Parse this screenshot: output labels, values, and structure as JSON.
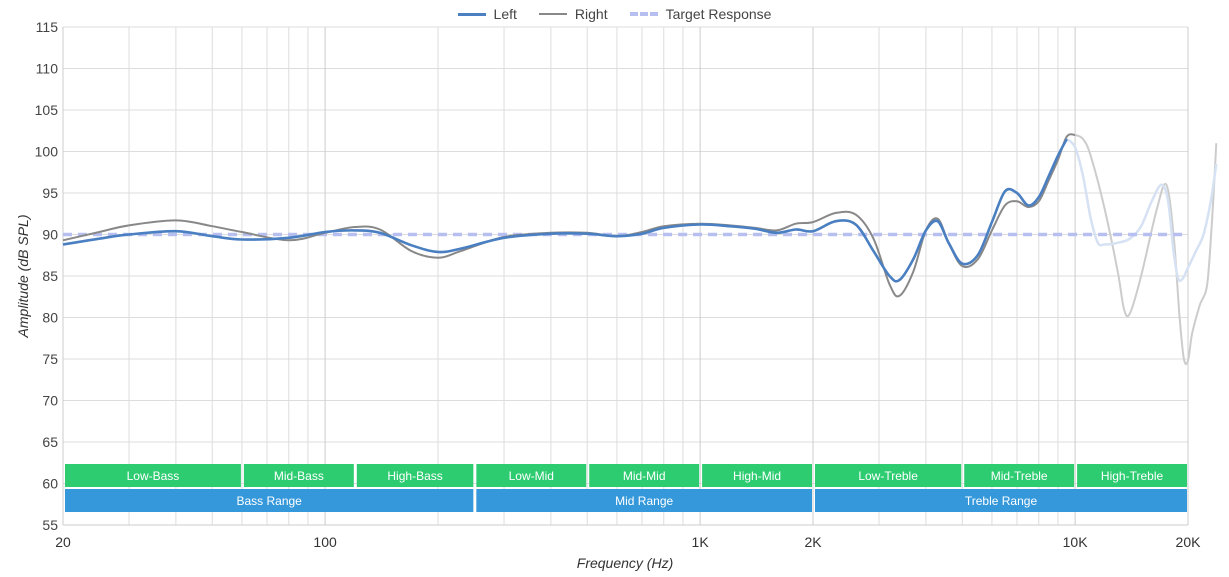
{
  "chart_data": {
    "type": "line",
    "title": "",
    "xlabel": "Frequency (Hz)",
    "ylabel": "Amplitude (dB SPL)",
    "xscale": "log",
    "xlim": [
      20,
      20000
    ],
    "ylim": [
      55,
      115
    ],
    "grid": true,
    "legend_position": "top-center",
    "y_ticks": [
      55,
      60,
      65,
      70,
      75,
      80,
      85,
      90,
      95,
      100,
      105,
      110,
      115
    ],
    "x_ticks": [
      {
        "value": 20,
        "label": "20"
      },
      {
        "value": 100,
        "label": "100"
      },
      {
        "value": 1000,
        "label": "1K"
      },
      {
        "value": 2000,
        "label": "2K"
      },
      {
        "value": 10000,
        "label": "10K"
      },
      {
        "value": 20000,
        "label": "20K"
      }
    ],
    "x_minor_grid": [
      30,
      40,
      50,
      60,
      70,
      80,
      90,
      200,
      300,
      400,
      500,
      600,
      700,
      800,
      900,
      3000,
      4000,
      5000,
      6000,
      7000,
      8000,
      9000
    ],
    "series": [
      {
        "name": "Left",
        "color": "#4a7fc1",
        "style": "solid",
        "points": [
          [
            20,
            88.8
          ],
          [
            25,
            89.5
          ],
          [
            30,
            90.0
          ],
          [
            40,
            90.4
          ],
          [
            50,
            89.8
          ],
          [
            60,
            89.4
          ],
          [
            80,
            89.6
          ],
          [
            100,
            90.3
          ],
          [
            120,
            90.5
          ],
          [
            140,
            90.2
          ],
          [
            170,
            88.7
          ],
          [
            200,
            87.9
          ],
          [
            230,
            88.3
          ],
          [
            300,
            89.6
          ],
          [
            400,
            90.1
          ],
          [
            500,
            90.1
          ],
          [
            600,
            89.8
          ],
          [
            700,
            90.1
          ],
          [
            800,
            90.8
          ],
          [
            1000,
            91.2
          ],
          [
            1200,
            91.0
          ],
          [
            1400,
            90.7
          ],
          [
            1600,
            90.2
          ],
          [
            1800,
            90.6
          ],
          [
            2000,
            90.4
          ],
          [
            2300,
            91.6
          ],
          [
            2600,
            91.2
          ],
          [
            2900,
            88.0
          ],
          [
            3200,
            85.0
          ],
          [
            3400,
            84.5
          ],
          [
            3700,
            87.0
          ],
          [
            4000,
            90.5
          ],
          [
            4300,
            91.6
          ],
          [
            4600,
            89.0
          ],
          [
            5000,
            86.5
          ],
          [
            5500,
            87.5
          ],
          [
            6000,
            91.5
          ],
          [
            6500,
            95.2
          ],
          [
            7000,
            95.0
          ],
          [
            7500,
            93.5
          ],
          [
            8000,
            94.5
          ],
          [
            8500,
            97.0
          ],
          [
            9000,
            99.5
          ],
          [
            9500,
            101.5
          ]
        ],
        "faded_points": [],
        "faded_color": "#d6e2f3"
      },
      {
        "name": "Right",
        "color": "#888888",
        "style": "solid",
        "points": [
          [
            20,
            89.3
          ],
          [
            25,
            90.3
          ],
          [
            30,
            91.1
          ],
          [
            40,
            91.7
          ],
          [
            50,
            91.0
          ],
          [
            60,
            90.3
          ],
          [
            80,
            89.3
          ],
          [
            100,
            90.2
          ],
          [
            120,
            90.9
          ],
          [
            140,
            90.6
          ],
          [
            170,
            88.0
          ],
          [
            200,
            87.2
          ],
          [
            230,
            88.0
          ],
          [
            300,
            89.7
          ],
          [
            400,
            90.2
          ],
          [
            500,
            90.2
          ],
          [
            600,
            89.8
          ],
          [
            700,
            90.3
          ],
          [
            800,
            91.0
          ],
          [
            1000,
            91.3
          ],
          [
            1200,
            91.1
          ],
          [
            1400,
            90.8
          ],
          [
            1600,
            90.5
          ],
          [
            1800,
            91.3
          ],
          [
            2000,
            91.5
          ],
          [
            2300,
            92.6
          ],
          [
            2600,
            92.4
          ],
          [
            2900,
            89.5
          ],
          [
            3200,
            84.0
          ],
          [
            3400,
            82.6
          ],
          [
            3700,
            85.5
          ],
          [
            4000,
            90.5
          ],
          [
            4300,
            91.9
          ],
          [
            4600,
            89.0
          ],
          [
            5000,
            86.2
          ],
          [
            5500,
            87.0
          ],
          [
            6000,
            90.5
          ],
          [
            6500,
            93.5
          ],
          [
            7000,
            94.0
          ],
          [
            7500,
            93.3
          ],
          [
            8000,
            94.0
          ],
          [
            8500,
            96.5
          ],
          [
            9000,
            99.0
          ],
          [
            9500,
            101.8
          ],
          [
            10000,
            102.0
          ]
        ],
        "faded_points": [
          [
            10000,
            102.0
          ],
          [
            10500,
            101.5
          ],
          [
            11000,
            99.5
          ],
          [
            12000,
            93.0
          ],
          [
            13000,
            85.5
          ],
          [
            13500,
            81.0
          ],
          [
            14000,
            80.5
          ],
          [
            15000,
            85.0
          ],
          [
            16500,
            93.0
          ],
          [
            17500,
            96.0
          ],
          [
            18300,
            90.0
          ],
          [
            19000,
            80.0
          ],
          [
            19500,
            75.0
          ],
          [
            20000,
            74.8
          ],
          [
            20500,
            78.0
          ],
          [
            21500,
            81.5
          ],
          [
            22500,
            84.0
          ],
          [
            23200,
            92.0
          ],
          [
            23800,
            101.0
          ]
        ],
        "faded_color": "#cccccc"
      },
      {
        "name": "Target Response",
        "color": "#b7bff0",
        "style": "dashed",
        "points": [
          [
            20,
            90.0
          ],
          [
            20000,
            90.0
          ]
        ],
        "faded_points": [],
        "faded_color": ""
      }
    ],
    "left_faded_points": [
      [
        9500,
        101.5
      ],
      [
        10000,
        100.5
      ],
      [
        10500,
        97.0
      ],
      [
        11000,
        92.0
      ],
      [
        11500,
        89.0
      ],
      [
        12000,
        88.8
      ],
      [
        13000,
        89.0
      ],
      [
        14000,
        89.5
      ],
      [
        15000,
        91.0
      ],
      [
        16000,
        94.0
      ],
      [
        17000,
        96.0
      ],
      [
        17700,
        94.0
      ],
      [
        18300,
        88.0
      ],
      [
        18800,
        84.8
      ],
      [
        19300,
        84.6
      ],
      [
        20000,
        86.0
      ],
      [
        21000,
        88.0
      ],
      [
        22000,
        90.0
      ],
      [
        23000,
        94.0
      ],
      [
        23800,
        98.5
      ]
    ],
    "bands": [
      {
        "label": "Low-Bass",
        "from": 20,
        "to": 60,
        "row": 1
      },
      {
        "label": "Mid-Bass",
        "from": 60,
        "to": 120,
        "row": 1
      },
      {
        "label": "High-Bass",
        "from": 120,
        "to": 250,
        "row": 1
      },
      {
        "label": "Low-Mid",
        "from": 250,
        "to": 500,
        "row": 1
      },
      {
        "label": "Mid-Mid",
        "from": 500,
        "to": 1000,
        "row": 1
      },
      {
        "label": "High-Mid",
        "from": 1000,
        "to": 2000,
        "row": 1
      },
      {
        "label": "Low-Treble",
        "from": 2000,
        "to": 5000,
        "row": 1
      },
      {
        "label": "Mid-Treble",
        "from": 5000,
        "to": 10000,
        "row": 1
      },
      {
        "label": "High-Treble",
        "from": 10000,
        "to": 20000,
        "row": 1
      },
      {
        "label": "Bass Range",
        "from": 20,
        "to": 250,
        "row": 2
      },
      {
        "label": "Mid Range",
        "from": 250,
        "to": 2000,
        "row": 2
      },
      {
        "label": "Treble Range",
        "from": 2000,
        "to": 20000,
        "row": 2
      }
    ],
    "band_colors": {
      "row1": "#2ecc71",
      "row2": "#3498db"
    }
  },
  "legend": [
    {
      "label": "Left",
      "color": "#4a7fc1",
      "style": "solid"
    },
    {
      "label": "Right",
      "color": "#888888",
      "style": "solid"
    },
    {
      "label": "Target Response",
      "color": "#b7bff0",
      "style": "dashed"
    }
  ]
}
